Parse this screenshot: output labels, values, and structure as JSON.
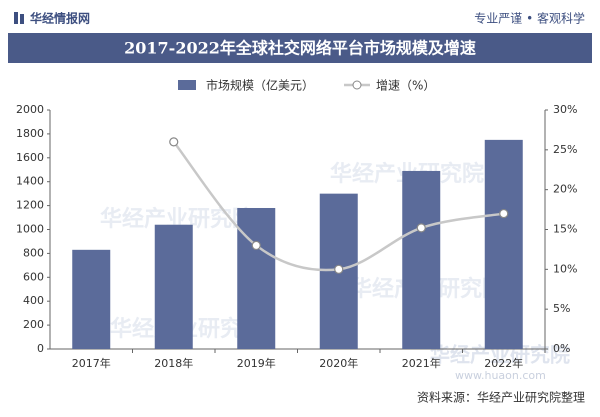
{
  "header": {
    "brand": "华经情报网",
    "slogan": "专业严谨 • 客观科学"
  },
  "chart_data": {
    "type": "bar_line",
    "title": "2017-2022年全球社交网络平台市场规模及增速",
    "categories": [
      "2017年",
      "2018年",
      "2019年",
      "2020年",
      "2021年",
      "2022年"
    ],
    "series": [
      {
        "name": "市场规模（亿美元）",
        "color": "#5b6b9a",
        "type": "bar",
        "values": [
          830,
          1040,
          1180,
          1300,
          1490,
          1750
        ]
      },
      {
        "name": "增速（%）",
        "color": "#c8c8c8",
        "type": "line",
        "axis": "y2",
        "values": [
          null,
          26,
          13,
          10,
          15.2,
          17
        ]
      }
    ],
    "ylim": [
      0,
      2000
    ],
    "yticks": [
      0,
      200,
      400,
      600,
      800,
      1000,
      1200,
      1400,
      1600,
      1800,
      2000
    ],
    "y2lim": [
      0,
      30
    ],
    "y2ticks": [
      {
        "value": 0,
        "label": "0%"
      },
      {
        "value": 5,
        "label": "5%"
      },
      {
        "value": 10,
        "label": "10%"
      },
      {
        "value": 15,
        "label": "15%"
      },
      {
        "value": 20,
        "label": "20%"
      },
      {
        "value": 25,
        "label": "25%"
      },
      {
        "value": 30,
        "label": "30%"
      }
    ],
    "source": "资料来源：华经产业研究院整理",
    "watermark": "华经产业研究院",
    "watermark_url": "www.huaon.com"
  }
}
